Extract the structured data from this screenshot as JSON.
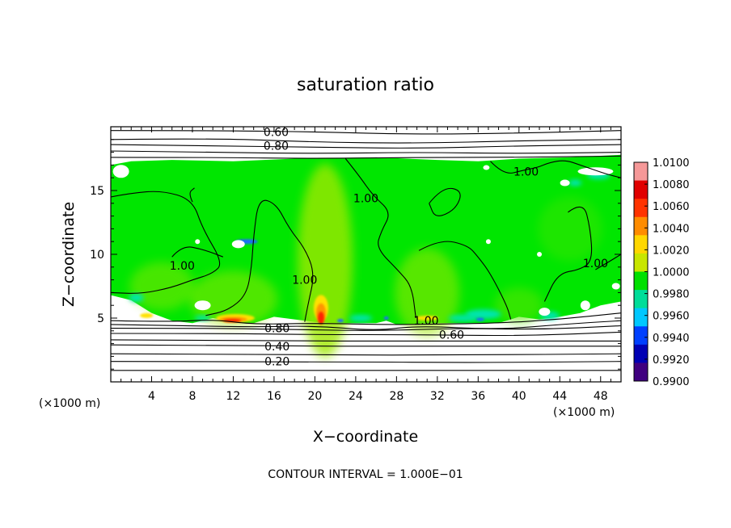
{
  "chart_data": {
    "type": "heatmap",
    "title": "saturation ratio",
    "xlabel": "X−coordinate",
    "ylabel": "Z−coordinate",
    "x_unit_label_left": "(×1000 m)",
    "x_unit_label_right": "(×1000 m)",
    "footer": "CONTOUR INTERVAL = 1.000E−01",
    "xlim": [
      0,
      50
    ],
    "ylim": [
      0,
      20
    ],
    "x_ticks": [
      4,
      8,
      12,
      16,
      20,
      24,
      28,
      32,
      36,
      40,
      44,
      48
    ],
    "x_tick_labels": [
      "4",
      "8",
      "12",
      "16",
      "20",
      "24",
      "28",
      "32",
      "36",
      "40",
      "44",
      "48"
    ],
    "y_ticks": [
      5,
      10,
      15
    ],
    "y_tick_labels": [
      "5",
      "10",
      "15"
    ],
    "grid": false,
    "colorbar": {
      "placement": "right",
      "levels": [
        "1.0100",
        "1.0080",
        "1.0060",
        "1.0040",
        "1.0020",
        "1.0000",
        "0.9980",
        "0.9960",
        "0.9940",
        "0.9920",
        "0.9900"
      ],
      "colors": [
        "#f59898",
        "#e00000",
        "#ff3300",
        "#ff8c00",
        "#ffd700",
        "#c8e600",
        "#00e000",
        "#00dd99",
        "#00c8ff",
        "#0040ff",
        "#0000b4",
        "#400080"
      ]
    },
    "field_colors": {
      "background": "#00e600",
      "light": "#9ee800",
      "moist": "#55e600",
      "cyan": "#00e5b0",
      "blue": "#1f6bff",
      "red": "#ff2400",
      "orange": "#ff9500",
      "yellow": "#ffe100"
    },
    "contour_labels": [
      {
        "text": "0.60",
        "x": 16.2,
        "z": 19.6
      },
      {
        "text": "0.80",
        "x": 16.2,
        "z": 18.5
      },
      {
        "text": "1.00",
        "x": 25.0,
        "z": 14.4
      },
      {
        "text": "1.00",
        "x": 40.7,
        "z": 16.5
      },
      {
        "text": "1.00",
        "x": 7.0,
        "z": 9.1
      },
      {
        "text": "1.00",
        "x": 19.0,
        "z": 8.0
      },
      {
        "text": "1.00",
        "x": 47.5,
        "z": 9.3
      },
      {
        "text": "1.00",
        "x": 30.9,
        "z": 4.8
      },
      {
        "text": "0.80",
        "x": 16.3,
        "z": 4.2
      },
      {
        "text": "0.60",
        "x": 33.4,
        "z": 3.7
      },
      {
        "text": "0.40",
        "x": 16.3,
        "z": 2.8
      },
      {
        "text": "0.20",
        "x": 16.3,
        "z": 1.6
      }
    ]
  }
}
